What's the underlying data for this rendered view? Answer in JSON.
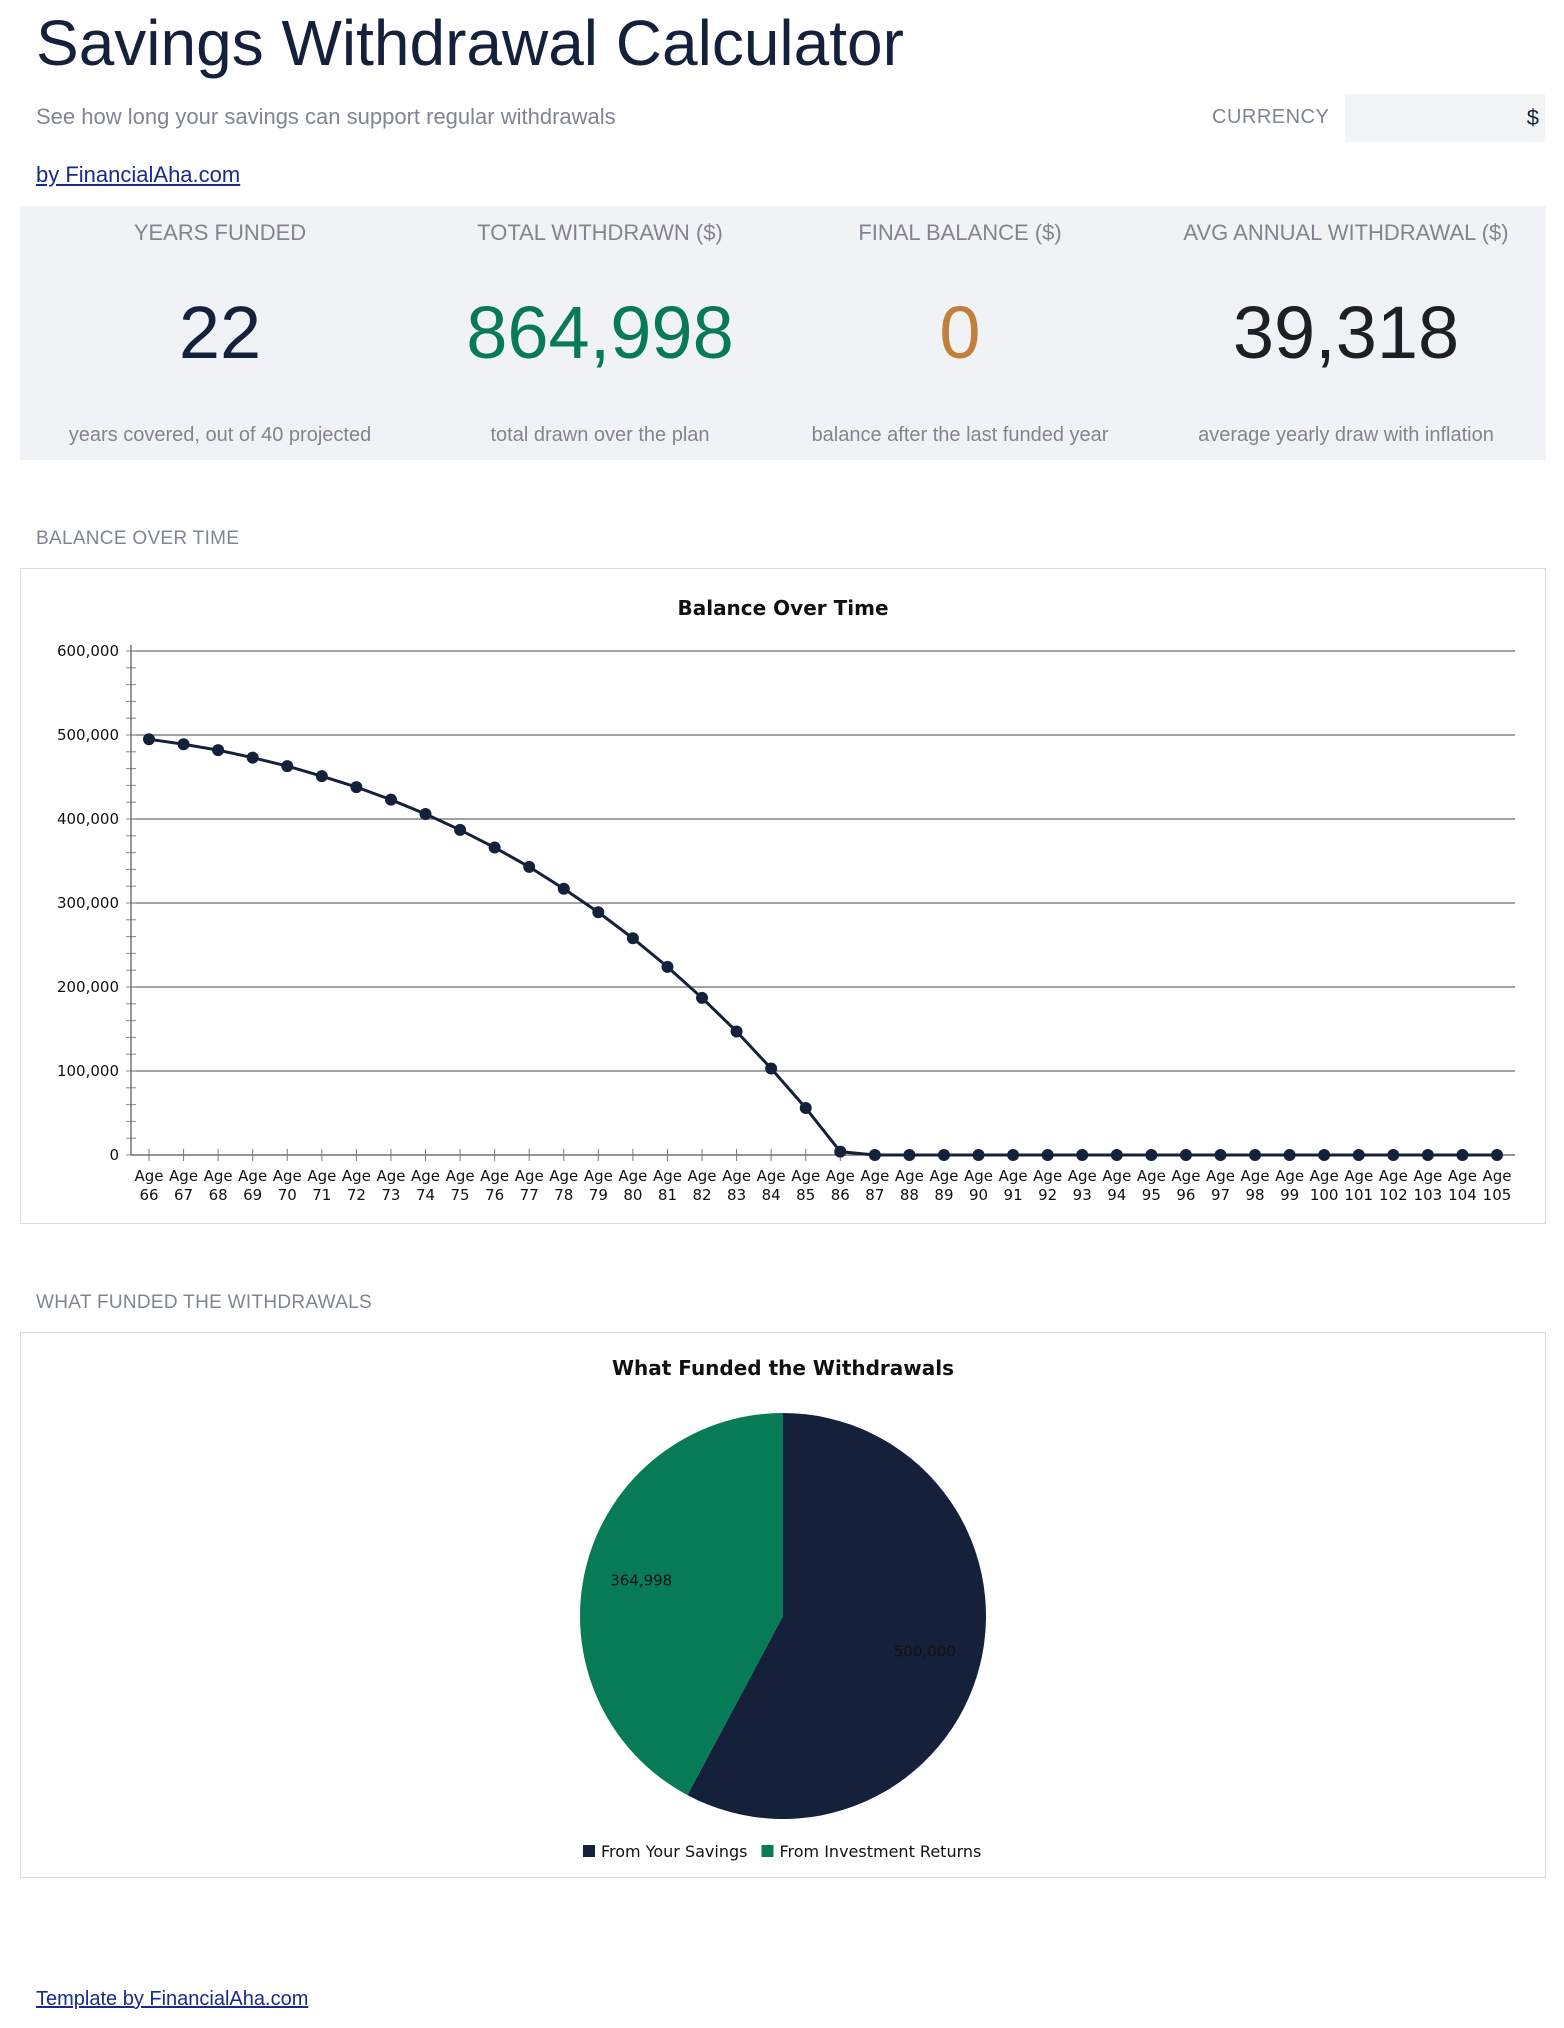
{
  "header": {
    "title": "Savings Withdrawal Calculator",
    "subtitle": "See how long your savings can support regular withdrawals",
    "byline": "by FinancialAha.com",
    "currency_label": "CURRENCY",
    "currency_value": "$"
  },
  "kpis": [
    {
      "label": "YEARS FUNDED",
      "value": "22",
      "note": "years covered, out of 40 projected",
      "color": "#15213a"
    },
    {
      "label": "TOTAL WITHDRAWN ($)",
      "value": "864,998",
      "note": "total drawn over the plan",
      "color": "#097a56"
    },
    {
      "label": "FINAL BALANCE ($)",
      "value": "0",
      "note": "balance after the last funded year",
      "color": "#c0803a"
    },
    {
      "label": "AVG ANNUAL WITHDRAWAL ($)",
      "value": "39,318",
      "note": "average yearly draw with inflation",
      "color": "#1d1f24"
    }
  ],
  "sections": {
    "balance": "BALANCE OVER TIME",
    "funding": "WHAT FUNDED THE WITHDRAWALS"
  },
  "chart_data": [
    {
      "type": "line",
      "title": "Balance Over Time",
      "x": [
        "Age 66",
        "Age 67",
        "Age 68",
        "Age 69",
        "Age 70",
        "Age 71",
        "Age 72",
        "Age 73",
        "Age 74",
        "Age 75",
        "Age 76",
        "Age 77",
        "Age 78",
        "Age 79",
        "Age 80",
        "Age 81",
        "Age 82",
        "Age 83",
        "Age 84",
        "Age 85",
        "Age 86",
        "Age 87",
        "Age 88",
        "Age 89",
        "Age 90",
        "Age 91",
        "Age 92",
        "Age 93",
        "Age 94",
        "Age 95",
        "Age 96",
        "Age 97",
        "Age 98",
        "Age 99",
        "Age 100",
        "Age 101",
        "Age 102",
        "Age 103",
        "Age 104",
        "Age 105"
      ],
      "values": [
        495000,
        489000,
        482000,
        473000,
        463000,
        451000,
        438000,
        423000,
        406000,
        387000,
        366000,
        343000,
        317000,
        289000,
        258000,
        224000,
        187000,
        147000,
        103000,
        56000,
        4000,
        0,
        0,
        0,
        0,
        0,
        0,
        0,
        0,
        0,
        0,
        0,
        0,
        0,
        0,
        0,
        0,
        0,
        0,
        0
      ],
      "ylim": [
        0,
        600000
      ],
      "yticks": [
        "0",
        "100,000",
        "200,000",
        "300,000",
        "400,000",
        "500,000",
        "600,000"
      ],
      "grid": true,
      "color": "#15213a"
    },
    {
      "type": "pie",
      "title": "What Funded the Withdrawals",
      "labels": [
        "From Your Savings",
        "From Investment Returns"
      ],
      "values": [
        500000,
        364998
      ],
      "value_labels": [
        "500,000",
        "364,998"
      ],
      "colors": [
        "#15213a",
        "#077a56"
      ],
      "legend": "bottom"
    }
  ],
  "footer": {
    "link": "Template by FinancialAha.com"
  }
}
